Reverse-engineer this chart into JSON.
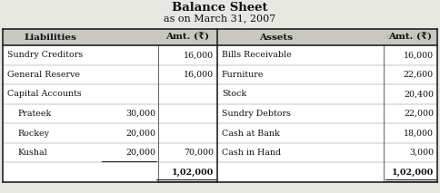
{
  "title": "Balance Sheet",
  "subtitle": "as on March 31, 2007",
  "liab_rows": [
    {
      "label": "Sundry Creditors",
      "indent": false,
      "sub_amt": "",
      "total_amt": "16,000"
    },
    {
      "label": "General Reserve",
      "indent": false,
      "sub_amt": "",
      "total_amt": "16,000"
    },
    {
      "label": "Capital Accounts",
      "indent": false,
      "sub_amt": "",
      "total_amt": ""
    },
    {
      "label": "Prateek",
      "indent": true,
      "sub_amt": "30,000",
      "total_amt": ""
    },
    {
      "label": "Rockey",
      "indent": true,
      "sub_amt": "20,000",
      "total_amt": ""
    },
    {
      "label": "Kushal",
      "indent": true,
      "sub_amt": "20,000",
      "total_amt": "70,000"
    },
    {
      "label": "",
      "indent": false,
      "sub_amt": "",
      "total_amt": "1,02,000"
    }
  ],
  "asset_rows": [
    {
      "label": "Bills Receivable",
      "amt": "16,000"
    },
    {
      "label": "Furniture",
      "amt": "22,600"
    },
    {
      "label": "Stock",
      "amt": "20,400"
    },
    {
      "label": "Sundry Debtors",
      "amt": "22,000"
    },
    {
      "label": "Cash at Bank",
      "amt": "18,000"
    },
    {
      "label": "Cash in Hand",
      "amt": "3,000"
    },
    {
      "label": "",
      "amt": "1,02,000"
    }
  ],
  "bg_color": "#e8e8e2",
  "table_bg": "#ffffff",
  "header_bg": "#c8c8c0",
  "line_color": "#222222",
  "text_color": "#111111",
  "ghost_color": "#bbbbbb"
}
